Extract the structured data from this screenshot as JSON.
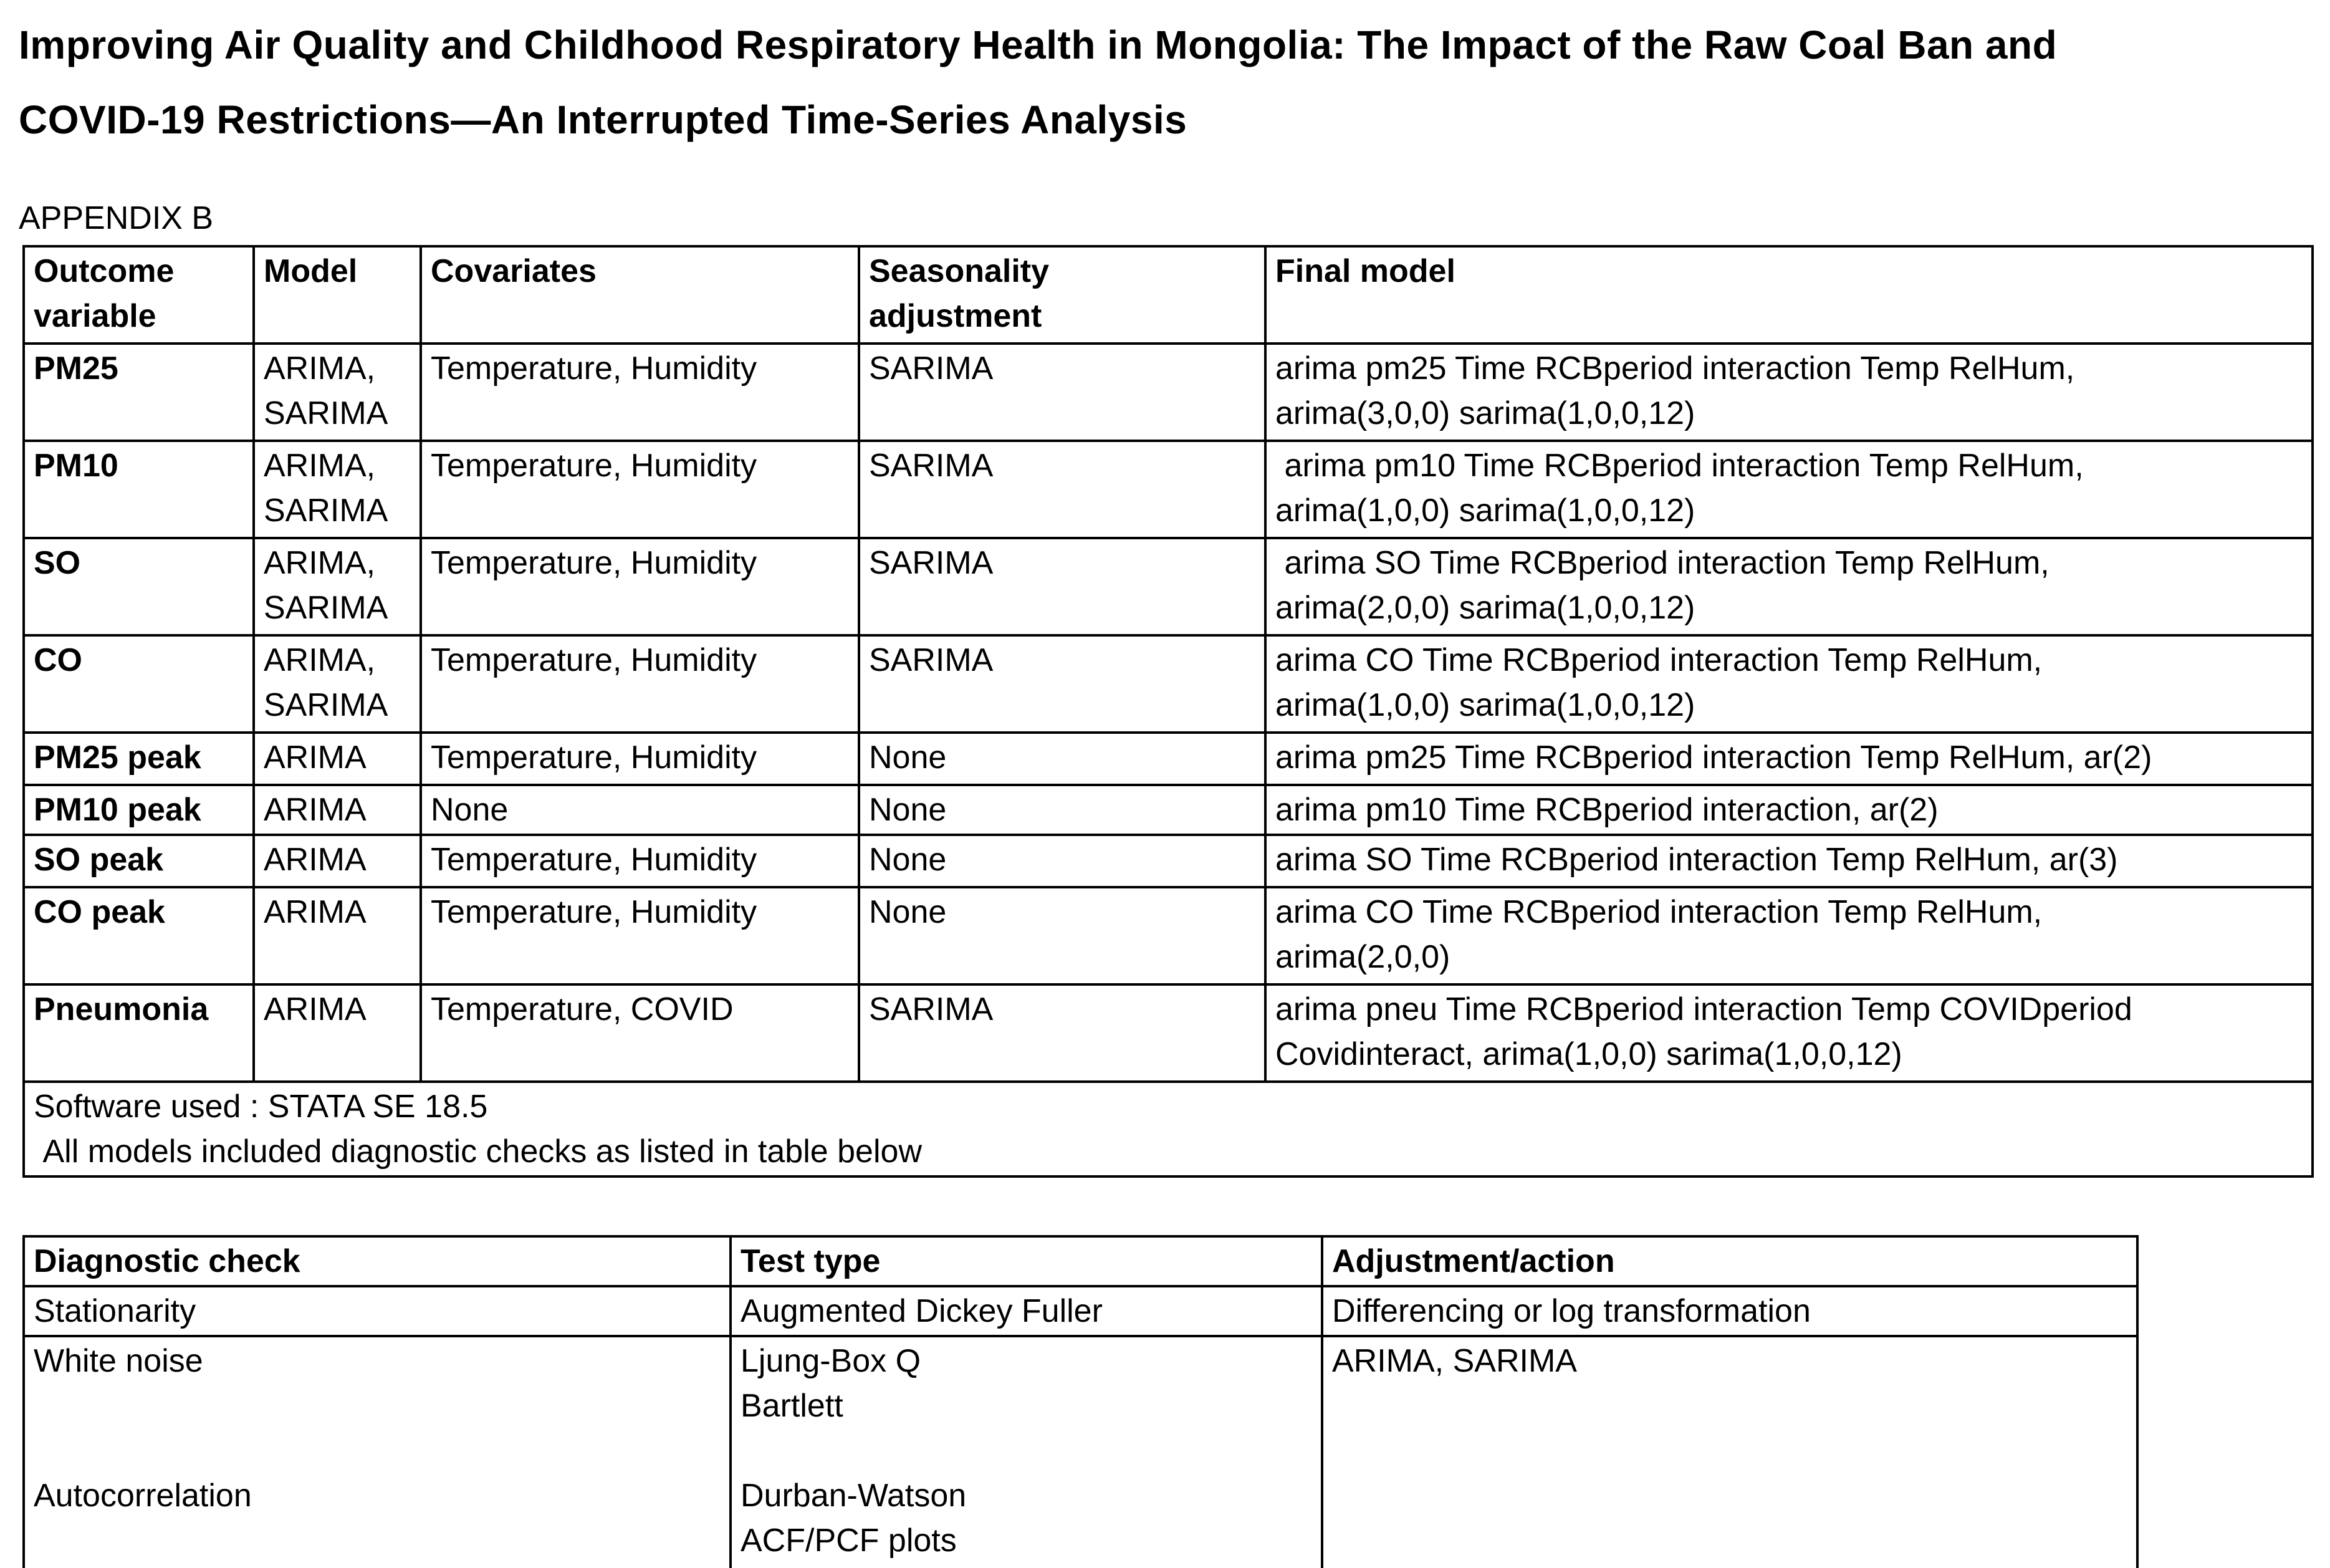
{
  "title": "Improving Air Quality and Childhood Respiratory Health in Mongolia: The Impact of the Raw Coal Ban and\nCOVID-19 Restrictions—An Interrupted Time-Series Analysis",
  "appendix_label": "APPENDIX B",
  "models_table": {
    "headers": [
      "Outcome\nvariable",
      "Model",
      "Covariates",
      "Seasonality\nadjustment",
      "Final model"
    ],
    "rows": [
      {
        "outcome": "PM25",
        "model": "ARIMA,\nSARIMA",
        "covariates": "Temperature, Humidity",
        "seasonality": "SARIMA",
        "final_model": "arima pm25 Time RCBperiod interaction Temp RelHum,\narima(3,0,0) sarima(1,0,0,12)"
      },
      {
        "outcome": "PM10",
        "model": "ARIMA,\nSARIMA",
        "covariates": "Temperature, Humidity",
        "seasonality": "SARIMA",
        "final_model": " arima pm10 Time RCBperiod interaction Temp RelHum,\narima(1,0,0) sarima(1,0,0,12)"
      },
      {
        "outcome": "SO",
        "model": "ARIMA,\nSARIMA",
        "covariates": "Temperature, Humidity",
        "seasonality": "SARIMA",
        "final_model": " arima SO Time RCBperiod interaction Temp RelHum,\narima(2,0,0) sarima(1,0,0,12)"
      },
      {
        "outcome": "CO",
        "model": "ARIMA,\nSARIMA",
        "covariates": "Temperature, Humidity",
        "seasonality": "SARIMA",
        "final_model": "arima CO Time RCBperiod interaction Temp RelHum,\narima(1,0,0) sarima(1,0,0,12)"
      },
      {
        "outcome": "PM25 peak",
        "model": "ARIMA",
        "covariates": "Temperature, Humidity",
        "seasonality": "None",
        "final_model": "arima pm25 Time RCBperiod interaction Temp RelHum, ar(2)"
      },
      {
        "outcome": "PM10 peak",
        "model": "ARIMA",
        "covariates": "None",
        "seasonality": "None",
        "final_model": "arima pm10 Time RCBperiod interaction, ar(2)"
      },
      {
        "outcome": "SO peak",
        "model": "ARIMA",
        "covariates": "Temperature, Humidity",
        "seasonality": "None",
        "final_model": "arima SO Time RCBperiod interaction Temp RelHum, ar(3)"
      },
      {
        "outcome": "CO peak",
        "model": "ARIMA",
        "covariates": "Temperature, Humidity",
        "seasonality": "None",
        "final_model": "arima CO Time RCBperiod interaction Temp RelHum,\narima(2,0,0)"
      },
      {
        "outcome": "Pneumonia",
        "model": "ARIMA",
        "covariates": "Temperature, COVID",
        "seasonality": "SARIMA",
        "final_model": "arima pneu Time RCBperiod interaction Temp COVIDperiod\nCovidinteract, arima(1,0,0) sarima(1,0,0,12)"
      }
    ],
    "footer": "Software used : STATA SE 18.5\n All models included diagnostic checks as listed in table below"
  },
  "diagnostics_table": {
    "headers": [
      "Diagnostic check",
      "Test type",
      "Adjustment/action"
    ],
    "rows": [
      {
        "check": "Stationarity",
        "test": "Augmented Dickey Fuller",
        "action": "Differencing or log transformation"
      },
      {
        "check": "White noise\n\n\nAutocorrelation",
        "test": "Ljung-Box Q\nBartlett\n\nDurban-Watson\nACF/PCF plots",
        "action": "ARIMA, SARIMA"
      }
    ]
  }
}
